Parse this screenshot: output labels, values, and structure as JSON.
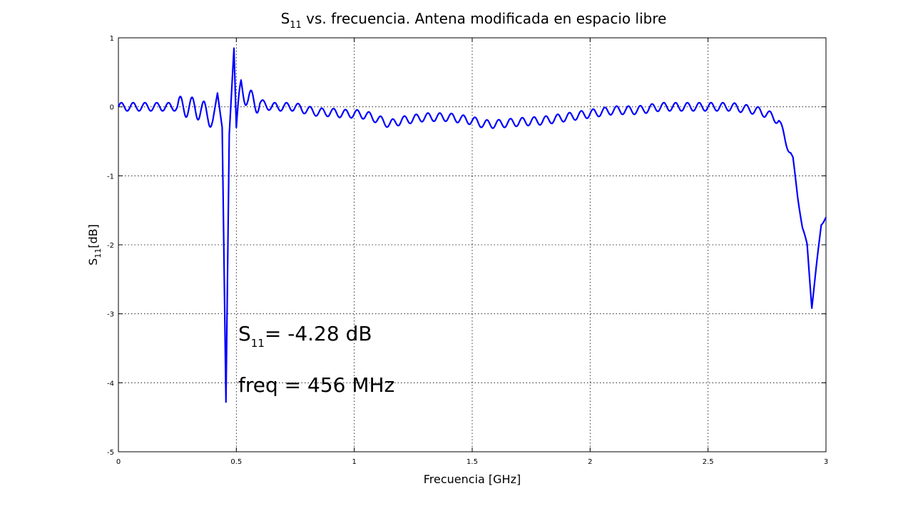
{
  "chart_data": {
    "type": "line",
    "title_main": "S",
    "title_sub": "11",
    "title_rest": " vs. frecuencia. Antena modificada en espacio libre",
    "xlabel": "Frecuencia [GHz]",
    "ylabel_main": "S",
    "ylabel_sub": "11",
    "ylabel_rest": "[dB]",
    "xlim": [
      0,
      3
    ],
    "ylim": [
      -5,
      1
    ],
    "x_ticks": [
      "0",
      "0.5",
      "1",
      "1.5",
      "2",
      "2.5",
      "3"
    ],
    "y_ticks": [
      "1",
      "0",
      "-1",
      "-2",
      "-3",
      "-4",
      "-5"
    ],
    "x_tick_values": [
      0,
      0.5,
      1,
      1.5,
      2,
      2.5,
      3
    ],
    "y_tick_values": [
      1,
      0,
      -1,
      -2,
      -3,
      -4,
      -5
    ],
    "grid": true,
    "line_color": "#0000ff",
    "series": [
      {
        "x": [
          0,
          0.05,
          0.1,
          0.15,
          0.2,
          0.25,
          0.3,
          0.35,
          0.38,
          0.4,
          0.42,
          0.44,
          0.456,
          0.47,
          0.49,
          0.5,
          0.52,
          0.55,
          0.6,
          0.65,
          0.7,
          0.75,
          0.8,
          0.85,
          0.9,
          0.95,
          1.0,
          1.05,
          1.1,
          1.15,
          1.2,
          1.3,
          1.4,
          1.5,
          1.55,
          1.6,
          1.7,
          1.8,
          1.9,
          2.0,
          2.1,
          2.2,
          2.3,
          2.4,
          2.5,
          2.6,
          2.7,
          2.75,
          2.8,
          2.83,
          2.86,
          2.88,
          2.9,
          2.92,
          2.94,
          2.96,
          2.98,
          3.0
        ],
        "y": [
          0,
          0,
          0,
          0,
          0,
          0,
          0,
          -0.05,
          -0.1,
          -0.2,
          0.2,
          -0.3,
          -4.28,
          -0.4,
          0.85,
          -0.3,
          0.3,
          0.1,
          0.05,
          0,
          0,
          0,
          -0.05,
          -0.08,
          -0.08,
          -0.1,
          -0.1,
          -0.12,
          -0.18,
          -0.25,
          -0.2,
          -0.15,
          -0.15,
          -0.2,
          -0.25,
          -0.25,
          -0.22,
          -0.2,
          -0.15,
          -0.1,
          -0.05,
          -0.05,
          0,
          0,
          0,
          0,
          -0.05,
          -0.1,
          -0.2,
          -0.5,
          -0.75,
          -1.3,
          -1.75,
          -2.0,
          -2.9,
          -2.3,
          -1.7,
          -1.6
        ]
      }
    ]
  },
  "annotation": {
    "s_main": "S",
    "s_sub": "11",
    "s_rest": "= -4.28 dB",
    "freq": "freq = 456 MHz"
  }
}
